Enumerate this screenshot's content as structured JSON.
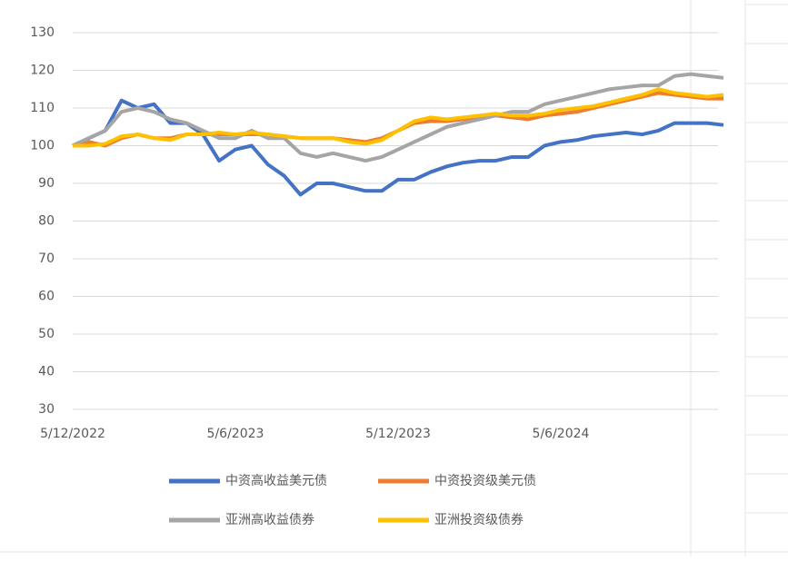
{
  "chart_data": {
    "type": "line",
    "categories": [
      "5/12/2022",
      null,
      null,
      null,
      null,
      null,
      null,
      null,
      null,
      null,
      "5/6/2023",
      null,
      null,
      null,
      null,
      null,
      null,
      null,
      null,
      null,
      "5/12/2023",
      null,
      null,
      null,
      null,
      null,
      null,
      null,
      null,
      null,
      "5/6/2024",
      null,
      null,
      null,
      null,
      null,
      null,
      null,
      null,
      null,
      null
    ],
    "series": [
      {
        "name": "中资高收益美元债",
        "color": "#4472c4",
        "values": [
          100,
          102,
          104,
          112,
          110,
          111,
          106,
          106,
          103,
          96,
          99,
          100,
          95,
          92,
          87,
          90,
          90,
          89,
          88,
          88,
          91,
          91,
          93,
          94.5,
          95.5,
          96,
          96,
          97,
          97,
          100,
          101,
          101.5,
          102.5,
          103,
          103.5,
          103,
          104,
          106,
          106,
          106,
          105.5
        ]
      },
      {
        "name": "中资投资级美元债",
        "color": "#ed7d31",
        "values": [
          100,
          101,
          100,
          102,
          103,
          102,
          102,
          103,
          103,
          103,
          103,
          103,
          103,
          102.5,
          102,
          102,
          102,
          101.5,
          101,
          102,
          104,
          106,
          106.5,
          106.5,
          107,
          107.5,
          108,
          107.5,
          107,
          108,
          108.5,
          109,
          110,
          111,
          112,
          113,
          114,
          113.5,
          113,
          112.5,
          112.5
        ]
      },
      {
        "name": "亚洲高收益债券",
        "color": "#a5a5a5",
        "values": [
          100,
          102,
          104,
          109,
          110,
          109,
          107,
          106,
          104,
          102,
          102,
          104,
          102,
          102,
          98,
          97,
          98,
          97,
          96,
          97,
          99,
          101,
          103,
          105,
          106,
          107,
          108,
          109,
          109,
          111,
          112,
          113,
          114,
          115,
          115.5,
          116,
          116,
          118.5,
          119,
          118.5,
          118
        ]
      },
      {
        "name": "亚洲投资级债券",
        "color": "#ffc000",
        "values": [
          100,
          100,
          100.5,
          102.5,
          103,
          102,
          101.5,
          103,
          103,
          103.5,
          103,
          103.5,
          103,
          102.5,
          102,
          102,
          102,
          101,
          100.5,
          101.5,
          104,
          106.5,
          107.5,
          107,
          107.5,
          108,
          108.5,
          108,
          108,
          108.5,
          109.5,
          110,
          110.5,
          111.5,
          112.5,
          113.5,
          115,
          114,
          113.5,
          113,
          113.5
        ]
      }
    ],
    "ylim": [
      30,
      130
    ],
    "yticks": [
      30,
      40,
      50,
      60,
      70,
      80,
      90,
      100,
      110,
      120,
      130
    ],
    "grid": true,
    "legend": "bottom"
  }
}
